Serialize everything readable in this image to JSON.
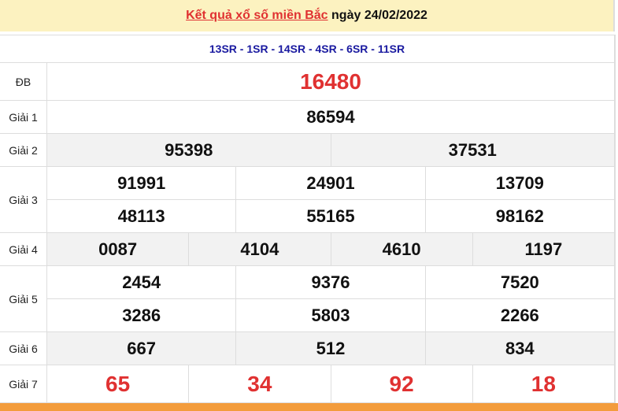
{
  "header": {
    "link": "Kết quả xổ số miền Bắc",
    "date_text": "ngày 24/02/2022"
  },
  "codes": "13SR - 1SR - 14SR - 4SR - 6SR - 11SR",
  "prizes": [
    {
      "label": "ĐB",
      "rows": [
        [
          "16480"
        ]
      ]
    },
    {
      "label": "Giải 1",
      "rows": [
        [
          "86594"
        ]
      ]
    },
    {
      "label": "Giải 2",
      "rows": [
        [
          "95398",
          "37531"
        ]
      ]
    },
    {
      "label": "Giải 3",
      "rows": [
        [
          "91991",
          "24901",
          "13709"
        ],
        [
          "48113",
          "55165",
          "98162"
        ]
      ]
    },
    {
      "label": "Giải 4",
      "rows": [
        [
          "0087",
          "4104",
          "4610",
          "1197"
        ]
      ]
    },
    {
      "label": "Giải 5",
      "rows": [
        [
          "2454",
          "9376",
          "7520"
        ],
        [
          "3286",
          "5803",
          "2266"
        ]
      ]
    },
    {
      "label": "Giải 6",
      "rows": [
        [
          "667",
          "512",
          "834"
        ]
      ]
    },
    {
      "label": "Giải 7",
      "rows": [
        [
          "65",
          "34",
          "92",
          "18"
        ]
      ]
    }
  ],
  "colors": {
    "accent": "#e03131",
    "codes": "#1a1aa0",
    "header_bg": "#fcf2c0",
    "footer": "#f39c3c"
  }
}
